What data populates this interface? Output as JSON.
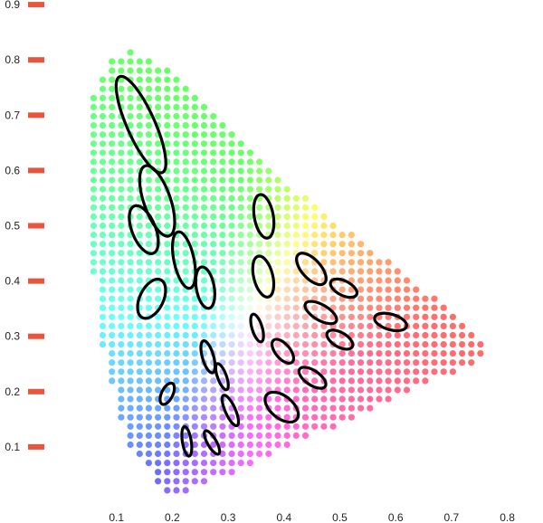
{
  "chart_data": {
    "type": "scatter",
    "title": "",
    "xlabel": "",
    "ylabel": "",
    "xlim": [
      0.0,
      0.8
    ],
    "ylim": [
      0.0,
      0.9
    ],
    "x_ticks": [
      "0.1",
      "0.2",
      "0.3",
      "0.4",
      "0.5",
      "0.6",
      "0.7",
      "0.8"
    ],
    "y_ticks": [
      "0.1",
      "0.2",
      "0.3",
      "0.4",
      "0.5",
      "0.6",
      "0.7",
      "0.8",
      "0.9"
    ],
    "grid": false,
    "tick_marker_color": "#e8553a",
    "ellipse_color": "#000000",
    "locus_polygon": [
      [
        0.175,
        0.005
      ],
      [
        0.09,
        0.11
      ],
      [
        0.05,
        0.27
      ],
      [
        0.02,
        0.52
      ],
      [
        0.02,
        0.71
      ],
      [
        0.06,
        0.8
      ],
      [
        0.1,
        0.82
      ],
      [
        0.16,
        0.79
      ],
      [
        0.24,
        0.72
      ],
      [
        0.33,
        0.62
      ],
      [
        0.45,
        0.52
      ],
      [
        0.58,
        0.42
      ],
      [
        0.74,
        0.29
      ],
      [
        0.73,
        0.26
      ],
      [
        0.175,
        0.005
      ]
    ],
    "ellipses": [
      {
        "cx": 0.118,
        "cy": 0.683,
        "rx": 0.025,
        "ry": 0.095,
        "angle": 24
      },
      {
        "cx": 0.147,
        "cy": 0.545,
        "rx": 0.024,
        "ry": 0.067,
        "angle": 19
      },
      {
        "cx": 0.123,
        "cy": 0.493,
        "rx": 0.021,
        "ry": 0.046,
        "angle": 22
      },
      {
        "cx": 0.195,
        "cy": 0.438,
        "rx": 0.018,
        "ry": 0.052,
        "angle": 12
      },
      {
        "cx": 0.233,
        "cy": 0.388,
        "rx": 0.016,
        "ry": 0.038,
        "angle": 10
      },
      {
        "cx": 0.338,
        "cy": 0.517,
        "rx": 0.017,
        "ry": 0.04,
        "angle": 10
      },
      {
        "cx": 0.137,
        "cy": 0.368,
        "rx": 0.021,
        "ry": 0.038,
        "angle": -26
      },
      {
        "cx": 0.337,
        "cy": 0.408,
        "rx": 0.017,
        "ry": 0.038,
        "angle": 14
      },
      {
        "cx": 0.423,
        "cy": 0.422,
        "rx": 0.017,
        "ry": 0.035,
        "angle": 42
      },
      {
        "cx": 0.481,
        "cy": 0.387,
        "rx": 0.013,
        "ry": 0.026,
        "angle": 63
      },
      {
        "cx": 0.44,
        "cy": 0.343,
        "rx": 0.014,
        "ry": 0.032,
        "angle": 60
      },
      {
        "cx": 0.565,
        "cy": 0.326,
        "rx": 0.014,
        "ry": 0.03,
        "angle": 74
      },
      {
        "cx": 0.326,
        "cy": 0.315,
        "rx": 0.009,
        "ry": 0.026,
        "angle": 17
      },
      {
        "cx": 0.474,
        "cy": 0.294,
        "rx": 0.013,
        "ry": 0.026,
        "angle": 60
      },
      {
        "cx": 0.372,
        "cy": 0.273,
        "rx": 0.013,
        "ry": 0.026,
        "angle": 40
      },
      {
        "cx": 0.238,
        "cy": 0.263,
        "rx": 0.01,
        "ry": 0.03,
        "angle": 16
      },
      {
        "cx": 0.425,
        "cy": 0.225,
        "rx": 0.013,
        "ry": 0.028,
        "angle": 56
      },
      {
        "cx": 0.263,
        "cy": 0.227,
        "rx": 0.008,
        "ry": 0.025,
        "angle": 20
      },
      {
        "cx": 0.165,
        "cy": 0.196,
        "rx": 0.01,
        "ry": 0.021,
        "angle": -26
      },
      {
        "cx": 0.37,
        "cy": 0.172,
        "rx": 0.02,
        "ry": 0.035,
        "angle": 51
      },
      {
        "cx": 0.278,
        "cy": 0.166,
        "rx": 0.009,
        "ry": 0.03,
        "angle": 24
      },
      {
        "cx": 0.2,
        "cy": 0.11,
        "rx": 0.008,
        "ry": 0.027,
        "angle": 9
      },
      {
        "cx": 0.245,
        "cy": 0.108,
        "rx": 0.008,
        "ry": 0.024,
        "angle": 30
      }
    ]
  }
}
